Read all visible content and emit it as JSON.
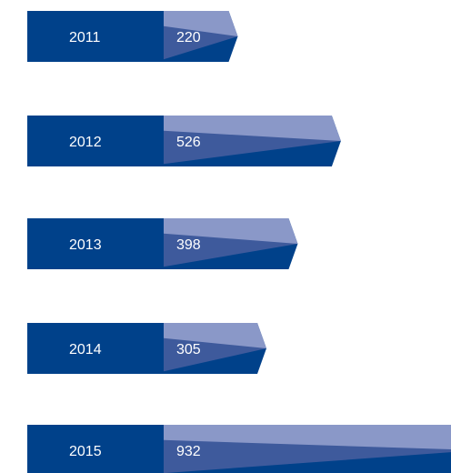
{
  "chart_data": {
    "type": "bar",
    "orientation": "horizontal",
    "categories": [
      "2011",
      "2012",
      "2013",
      "2014",
      "2015"
    ],
    "values": [
      220,
      526,
      398,
      305,
      932
    ],
    "title": "",
    "xlabel": "",
    "ylabel": "",
    "grid": false,
    "legend": "none"
  },
  "colors": {
    "label_block": "#00418a",
    "bar_dark": "#00418a",
    "bar_mid": "#3e5a9c",
    "bar_light": "#8a98c8",
    "text": "#ffffff"
  }
}
